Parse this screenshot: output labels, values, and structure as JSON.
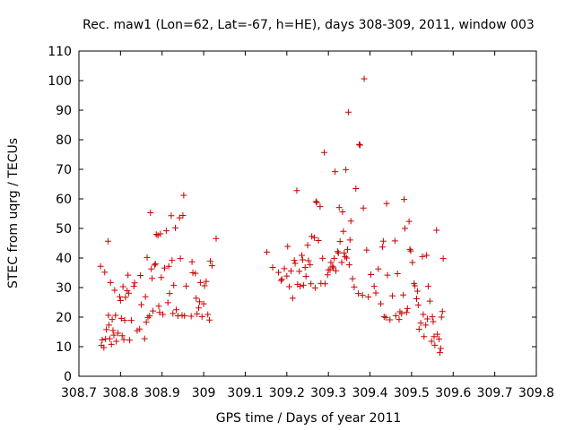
{
  "chart_data": {
    "type": "scatter",
    "title": "Rec. maw1 (Lon=62, Lat=-67, h=HE), days 308-309, 2011, window 003",
    "xlabel": "GPS time / Days of year 2011",
    "ylabel": "STEC from uqrg / TECUs",
    "xlim": [
      308.7,
      309.8
    ],
    "ylim": [
      0,
      110
    ],
    "xticks": [
      "308.7",
      "308.8",
      "308.9",
      "309",
      "309.1",
      "309.2",
      "309.3",
      "309.4",
      "309.5",
      "309.6",
      "309.7",
      "309.8"
    ],
    "yticks": [
      "0",
      "10",
      "20",
      "30",
      "40",
      "50",
      "60",
      "70",
      "80",
      "90",
      "100",
      "110"
    ],
    "grid": false,
    "legend": "none",
    "marker": "+",
    "color": "#cc0000",
    "points": [
      [
        308.752,
        37.2
      ],
      [
        308.754,
        10.4
      ],
      [
        308.756,
        12.3
      ],
      [
        308.76,
        9.7
      ],
      [
        308.762,
        35.2
      ],
      [
        308.764,
        12.6
      ],
      [
        308.766,
        15.8
      ],
      [
        308.77,
        45.7
      ],
      [
        308.771,
        20.6
      ],
      [
        308.772,
        17.3
      ],
      [
        308.774,
        12.7
      ],
      [
        308.776,
        31.7
      ],
      [
        308.778,
        10.8
      ],
      [
        308.78,
        19.2
      ],
      [
        308.782,
        15.5
      ],
      [
        308.784,
        13.9
      ],
      [
        308.786,
        29.1
      ],
      [
        308.788,
        20.6
      ],
      [
        308.79,
        11.8
      ],
      [
        308.794,
        14.6
      ],
      [
        308.798,
        26.9
      ],
      [
        308.8,
        25.6
      ],
      [
        308.802,
        19.6
      ],
      [
        308.804,
        13.7
      ],
      [
        308.806,
        30.3
      ],
      [
        308.808,
        12.4
      ],
      [
        308.81,
        18.9
      ],
      [
        308.812,
        26.7
      ],
      [
        308.816,
        28.9
      ],
      [
        308.818,
        34.2
      ],
      [
        308.82,
        28.1
      ],
      [
        308.822,
        12.2
      ],
      [
        308.826,
        18.9
      ],
      [
        308.832,
        30.4
      ],
      [
        308.834,
        31.6
      ],
      [
        308.84,
        15.4
      ],
      [
        308.846,
        16.0
      ],
      [
        308.848,
        34.1
      ],
      [
        308.85,
        24.2
      ],
      [
        308.858,
        12.7
      ],
      [
        308.86,
        26.9
      ],
      [
        308.862,
        18.3
      ],
      [
        308.864,
        40.2
      ],
      [
        308.866,
        19.9
      ],
      [
        308.87,
        20.4
      ],
      [
        308.872,
        55.3
      ],
      [
        308.874,
        36.3
      ],
      [
        308.876,
        33.1
      ],
      [
        308.878,
        22.1
      ],
      [
        308.882,
        37.6
      ],
      [
        308.884,
        38.0
      ],
      [
        308.886,
        48.0
      ],
      [
        308.89,
        47.6
      ],
      [
        308.892,
        23.7
      ],
      [
        308.894,
        21.6
      ],
      [
        308.896,
        48.2
      ],
      [
        308.898,
        33.4
      ],
      [
        308.902,
        20.9
      ],
      [
        308.906,
        36.6
      ],
      [
        308.91,
        49.2
      ],
      [
        308.914,
        24.9
      ],
      [
        308.916,
        37.2
      ],
      [
        308.918,
        28.0
      ],
      [
        308.922,
        54.3
      ],
      [
        308.924,
        39.2
      ],
      [
        308.926,
        21.2
      ],
      [
        308.928,
        30.8
      ],
      [
        308.932,
        50.2
      ],
      [
        308.934,
        22.5
      ],
      [
        308.938,
        20.4
      ],
      [
        308.942,
        53.6
      ],
      [
        308.944,
        39.8
      ],
      [
        308.948,
        20.6
      ],
      [
        308.95,
        54.4
      ],
      [
        308.952,
        61.2
      ],
      [
        308.954,
        20.4
      ],
      [
        308.958,
        30.5
      ],
      [
        308.97,
        20.3
      ],
      [
        308.972,
        38.7
      ],
      [
        308.974,
        35.0
      ],
      [
        308.98,
        34.8
      ],
      [
        308.982,
        26.4
      ],
      [
        308.984,
        21.1
      ],
      [
        308.988,
        23.1
      ],
      [
        308.99,
        25.2
      ],
      [
        308.992,
        31.7
      ],
      [
        308.996,
        20.2
      ],
      [
        309.0,
        24.5
      ],
      [
        309.002,
        30.6
      ],
      [
        309.006,
        32.1
      ],
      [
        309.01,
        20.9
      ],
      [
        309.014,
        19.0
      ],
      [
        309.016,
        38.9
      ],
      [
        309.02,
        37.4
      ],
      [
        309.03,
        46.6
      ],
      [
        309.152,
        42.0
      ],
      [
        309.166,
        36.8
      ],
      [
        309.18,
        35.1
      ],
      [
        309.186,
        32.4
      ],
      [
        309.188,
        32.8
      ],
      [
        309.194,
        36.4
      ],
      [
        309.2,
        33.9
      ],
      [
        309.202,
        43.9
      ],
      [
        309.206,
        30.3
      ],
      [
        309.21,
        35.6
      ],
      [
        309.214,
        26.4
      ],
      [
        309.218,
        39.2
      ],
      [
        309.22,
        38.2
      ],
      [
        309.224,
        62.8
      ],
      [
        309.226,
        31.1
      ],
      [
        309.23,
        35.5
      ],
      [
        309.232,
        30.4
      ],
      [
        309.236,
        40.9
      ],
      [
        309.238,
        39.4
      ],
      [
        309.24,
        30.8
      ],
      [
        309.244,
        36.8
      ],
      [
        309.246,
        33.8
      ],
      [
        309.25,
        44.3
      ],
      [
        309.252,
        39.1
      ],
      [
        309.256,
        37.7
      ],
      [
        309.258,
        31.3
      ],
      [
        309.26,
        47.3
      ],
      [
        309.266,
        46.9
      ],
      [
        309.268,
        29.9
      ],
      [
        309.27,
        59.1
      ],
      [
        309.272,
        58.8
      ],
      [
        309.276,
        45.9
      ],
      [
        309.28,
        57.4
      ],
      [
        309.282,
        31.4
      ],
      [
        309.286,
        39.9
      ],
      [
        309.29,
        75.7
      ],
      [
        309.292,
        31.3
      ],
      [
        309.298,
        34.3
      ],
      [
        309.3,
        36.0
      ],
      [
        309.304,
        36.0
      ],
      [
        309.306,
        38.5
      ],
      [
        309.31,
        37.2
      ],
      [
        309.312,
        36.7
      ],
      [
        309.314,
        39.9
      ],
      [
        309.316,
        69.2
      ],
      [
        309.318,
        35.7
      ],
      [
        309.322,
        42.2
      ],
      [
        309.324,
        41.7
      ],
      [
        309.326,
        57.1
      ],
      [
        309.328,
        45.6
      ],
      [
        309.332,
        38.5
      ],
      [
        309.334,
        55.6
      ],
      [
        309.336,
        49.0
      ],
      [
        309.338,
        41.7
      ],
      [
        309.34,
        40.4
      ],
      [
        309.342,
        69.9
      ],
      [
        309.344,
        40.0
      ],
      [
        309.346,
        42.9
      ],
      [
        309.348,
        89.3
      ],
      [
        309.35,
        37.7
      ],
      [
        309.352,
        46.1
      ],
      [
        309.354,
        52.5
      ],
      [
        309.358,
        33.0
      ],
      [
        309.362,
        30.2
      ],
      [
        309.366,
        63.5
      ],
      [
        309.372,
        28.0
      ],
      [
        309.374,
        78.4
      ],
      [
        309.376,
        78.2
      ],
      [
        309.382,
        27.4
      ],
      [
        309.384,
        56.9
      ],
      [
        309.386,
        100.6
      ],
      [
        309.392,
        42.7
      ],
      [
        309.396,
        26.8
      ],
      [
        309.402,
        34.4
      ],
      [
        309.41,
        30.4
      ],
      [
        309.414,
        28.2
      ],
      [
        309.42,
        36.3
      ],
      [
        309.426,
        24.5
      ],
      [
        309.43,
        43.7
      ],
      [
        309.432,
        45.7
      ],
      [
        309.434,
        20.1
      ],
      [
        309.438,
        19.9
      ],
      [
        309.44,
        58.4
      ],
      [
        309.442,
        34.2
      ],
      [
        309.448,
        19.1
      ],
      [
        309.454,
        27.2
      ],
      [
        309.46,
        45.8
      ],
      [
        309.462,
        20.5
      ],
      [
        309.466,
        34.7
      ],
      [
        309.47,
        19.2
      ],
      [
        309.472,
        21.8
      ],
      [
        309.476,
        21.2
      ],
      [
        309.48,
        27.5
      ],
      [
        309.482,
        59.8
      ],
      [
        309.484,
        50.0
      ],
      [
        309.488,
        21.6
      ],
      [
        309.49,
        22.9
      ],
      [
        309.494,
        52.4
      ],
      [
        309.496,
        42.9
      ],
      [
        309.498,
        42.4
      ],
      [
        309.502,
        38.5
      ],
      [
        309.506,
        31.4
      ],
      [
        309.508,
        30.6
      ],
      [
        309.512,
        26.2
      ],
      [
        309.514,
        28.8
      ],
      [
        309.516,
        24.1
      ],
      [
        309.518,
        15.9
      ],
      [
        309.522,
        18.0
      ],
      [
        309.526,
        40.5
      ],
      [
        309.528,
        20.9
      ],
      [
        309.53,
        13.4
      ],
      [
        309.534,
        17.3
      ],
      [
        309.536,
        40.9
      ],
      [
        309.538,
        19.4
      ],
      [
        309.54,
        30.4
      ],
      [
        309.544,
        25.4
      ],
      [
        309.548,
        11.8
      ],
      [
        309.55,
        20.1
      ],
      [
        309.552,
        18.5
      ],
      [
        309.554,
        13.4
      ],
      [
        309.556,
        10.5
      ],
      [
        309.56,
        49.4
      ],
      [
        309.562,
        14.2
      ],
      [
        309.566,
        12.6
      ],
      [
        309.568,
        8.0
      ],
      [
        309.57,
        9.4
      ],
      [
        309.572,
        20.0
      ],
      [
        309.574,
        21.9
      ],
      [
        309.576,
        39.8
      ]
    ]
  }
}
